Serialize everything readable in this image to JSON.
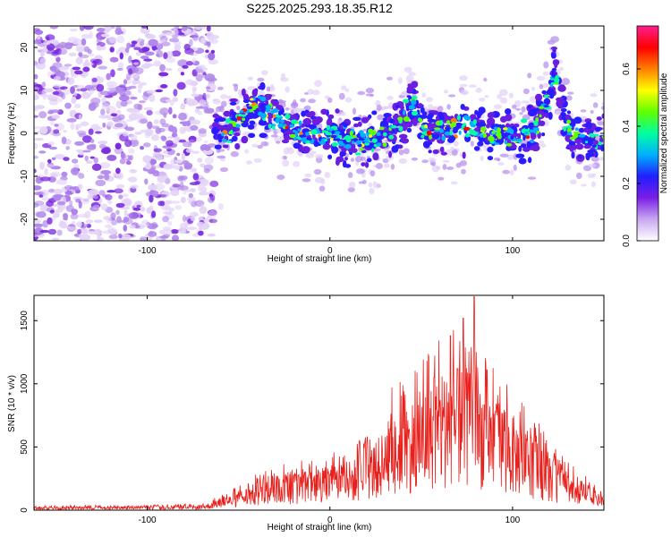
{
  "chart_data": [
    {
      "type": "heatmap",
      "title": "S225.2025.293.18.35.R12",
      "xlabel": "Height of straight line (km)",
      "ylabel": "Frequency (Hz)",
      "xlim": [
        -162,
        150
      ],
      "ylim": [
        -25,
        25
      ],
      "xticks": [
        -100,
        0,
        100
      ],
      "xtick_labels": [
        "-100",
        "0",
        "100"
      ],
      "yticks": [
        20,
        10,
        0,
        -10,
        -20
      ],
      "ytick_labels": [
        "20",
        "10",
        "0",
        "-10",
        "-20"
      ],
      "noise_region_x": [
        -162,
        -63
      ],
      "ridge": [
        {
          "x": -63,
          "y": 0
        },
        {
          "x": -55,
          "y": 1
        },
        {
          "x": -48,
          "y": 4
        },
        {
          "x": -40,
          "y": 6
        },
        {
          "x": -32,
          "y": 4
        },
        {
          "x": -24,
          "y": 2
        },
        {
          "x": -16,
          "y": 0
        },
        {
          "x": -8,
          "y": -1
        },
        {
          "x": 0,
          "y": 0
        },
        {
          "x": 8,
          "y": -1
        },
        {
          "x": 16,
          "y": -2
        },
        {
          "x": 24,
          "y": -1
        },
        {
          "x": 32,
          "y": 0
        },
        {
          "x": 40,
          "y": 3
        },
        {
          "x": 45,
          "y": 8
        },
        {
          "x": 52,
          "y": 1
        },
        {
          "x": 62,
          "y": 0
        },
        {
          "x": 72,
          "y": 2
        },
        {
          "x": 82,
          "y": 1
        },
        {
          "x": 92,
          "y": 0
        },
        {
          "x": 102,
          "y": -1
        },
        {
          "x": 112,
          "y": 1
        },
        {
          "x": 121,
          "y": 10
        },
        {
          "x": 123,
          "y": 16
        },
        {
          "x": 130,
          "y": 0
        },
        {
          "x": 140,
          "y": -1
        },
        {
          "x": 150,
          "y": -2
        }
      ],
      "colorbar": {
        "label": "Normalized spectral amplitude",
        "min": 0.0,
        "max": 0.75,
        "ticks": [
          0.0,
          0.2,
          0.4,
          0.6
        ],
        "tick_labels": [
          "0.0",
          "0.2",
          "0.4",
          "0.6"
        ],
        "colors": [
          "#ffffff",
          "#c8a8f0",
          "#7a1ee6",
          "#1f1fff",
          "#00b0ff",
          "#00ffa0",
          "#60ff00",
          "#ffff00",
          "#ff8000",
          "#ff0000",
          "#ff1e8c"
        ]
      }
    },
    {
      "type": "line",
      "xlabel": "Height of straight line (km)",
      "ylabel": "SNR (10 * v/v)",
      "xlim": [
        -162,
        150
      ],
      "ylim": [
        0,
        1700
      ],
      "xticks": [
        -100,
        0,
        100
      ],
      "xtick_labels": [
        "-100",
        "0",
        "100"
      ],
      "yticks": [
        0,
        500,
        1000,
        1500
      ],
      "ytick_labels": [
        "0",
        "500",
        "1000",
        "1500"
      ],
      "series": [
        {
          "name": "SNR",
          "color": "#e8201c",
          "envelope": [
            {
              "x": -162,
              "y": 20
            },
            {
              "x": -100,
              "y": 25
            },
            {
              "x": -70,
              "y": 30
            },
            {
              "x": -55,
              "y": 90
            },
            {
              "x": -40,
              "y": 170
            },
            {
              "x": -20,
              "y": 230
            },
            {
              "x": 0,
              "y": 260
            },
            {
              "x": 15,
              "y": 320
            },
            {
              "x": 25,
              "y": 420
            },
            {
              "x": 35,
              "y": 560
            },
            {
              "x": 45,
              "y": 680
            },
            {
              "x": 55,
              "y": 760
            },
            {
              "x": 65,
              "y": 850
            },
            {
              "x": 75,
              "y": 880
            },
            {
              "x": 85,
              "y": 780
            },
            {
              "x": 95,
              "y": 650
            },
            {
              "x": 105,
              "y": 520
            },
            {
              "x": 115,
              "y": 400
            },
            {
              "x": 125,
              "y": 280
            },
            {
              "x": 135,
              "y": 200
            },
            {
              "x": 145,
              "y": 120
            },
            {
              "x": 150,
              "y": 90
            }
          ],
          "peaks": [
            {
              "x": 34,
              "y": 970
            },
            {
              "x": 42,
              "y": 780
            },
            {
              "x": 57,
              "y": 1050
            },
            {
              "x": 66,
              "y": 1380
            },
            {
              "x": 70,
              "y": 1120
            },
            {
              "x": 73,
              "y": 1520
            },
            {
              "x": 79,
              "y": 1690
            },
            {
              "x": 86,
              "y": 1110
            },
            {
              "x": 93,
              "y": 980
            },
            {
              "x": 104,
              "y": 780
            },
            {
              "x": 112,
              "y": 690
            }
          ]
        }
      ]
    }
  ]
}
